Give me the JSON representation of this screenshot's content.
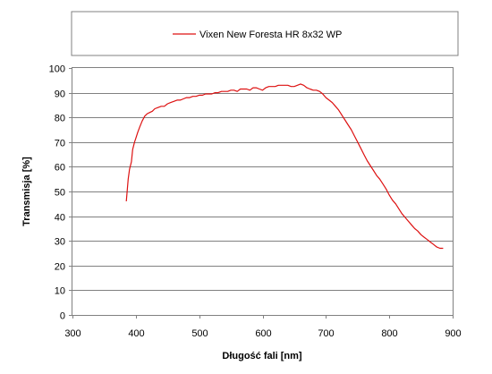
{
  "chart_data": {
    "type": "line",
    "title": "",
    "xlabel": "Długość fali [nm]",
    "ylabel": "Transmisja [%]",
    "xlim": [
      300,
      900
    ],
    "ylim": [
      0,
      100
    ],
    "xticks": [
      300,
      400,
      500,
      600,
      700,
      800,
      900
    ],
    "yticks": [
      0,
      10,
      20,
      30,
      40,
      50,
      60,
      70,
      80,
      90,
      100
    ],
    "grid": "horizontal",
    "legend_position": "top",
    "series": [
      {
        "name": "Vixen New Foresta HR 8x32 WP",
        "color": "#dd1111",
        "x": [
          385,
          388,
          390,
          393,
          395,
          398,
          400,
          403,
          406,
          410,
          414,
          418,
          422,
          426,
          430,
          435,
          440,
          445,
          450,
          455,
          460,
          465,
          470,
          475,
          480,
          485,
          490,
          495,
          500,
          505,
          510,
          515,
          520,
          525,
          530,
          535,
          540,
          545,
          550,
          555,
          560,
          565,
          570,
          575,
          580,
          585,
          590,
          595,
          600,
          605,
          610,
          615,
          620,
          625,
          630,
          635,
          640,
          645,
          650,
          655,
          660,
          665,
          670,
          675,
          680,
          685,
          690,
          695,
          700,
          705,
          710,
          715,
          720,
          725,
          730,
          735,
          740,
          745,
          750,
          755,
          760,
          765,
          770,
          775,
          780,
          785,
          790,
          795,
          800,
          805,
          810,
          815,
          820,
          825,
          830,
          835,
          840,
          845,
          850,
          855,
          860,
          865,
          870,
          875,
          880,
          885
        ],
        "y": [
          46,
          55,
          59,
          62,
          67,
          70,
          71.5,
          74,
          76,
          78.5,
          80.5,
          81.5,
          82,
          82.5,
          83.5,
          84,
          84.5,
          84.5,
          85.5,
          86,
          86.5,
          87,
          87,
          87.5,
          88,
          88,
          88.5,
          88.5,
          89,
          89,
          89.5,
          89.5,
          89.5,
          90,
          90,
          90.5,
          90.5,
          90.5,
          91,
          91,
          90.5,
          91.5,
          91.5,
          91.5,
          91,
          92,
          92,
          91.5,
          91,
          92,
          92.5,
          92.5,
          92.5,
          93,
          93,
          93,
          93,
          92.5,
          92.5,
          93,
          93.5,
          93,
          92,
          91.5,
          91,
          91,
          90.5,
          89.5,
          88,
          87,
          86,
          84.5,
          83,
          81,
          79,
          77,
          75,
          72.5,
          70,
          67.5,
          65,
          62.5,
          60.5,
          58.5,
          56.5,
          55,
          53,
          51,
          48.5,
          46.5,
          45,
          43,
          41,
          39.5,
          38,
          36.5,
          35,
          34,
          32.5,
          31.5,
          30.5,
          29.5,
          28.5,
          27.5,
          27,
          27
        ]
      }
    ]
  }
}
